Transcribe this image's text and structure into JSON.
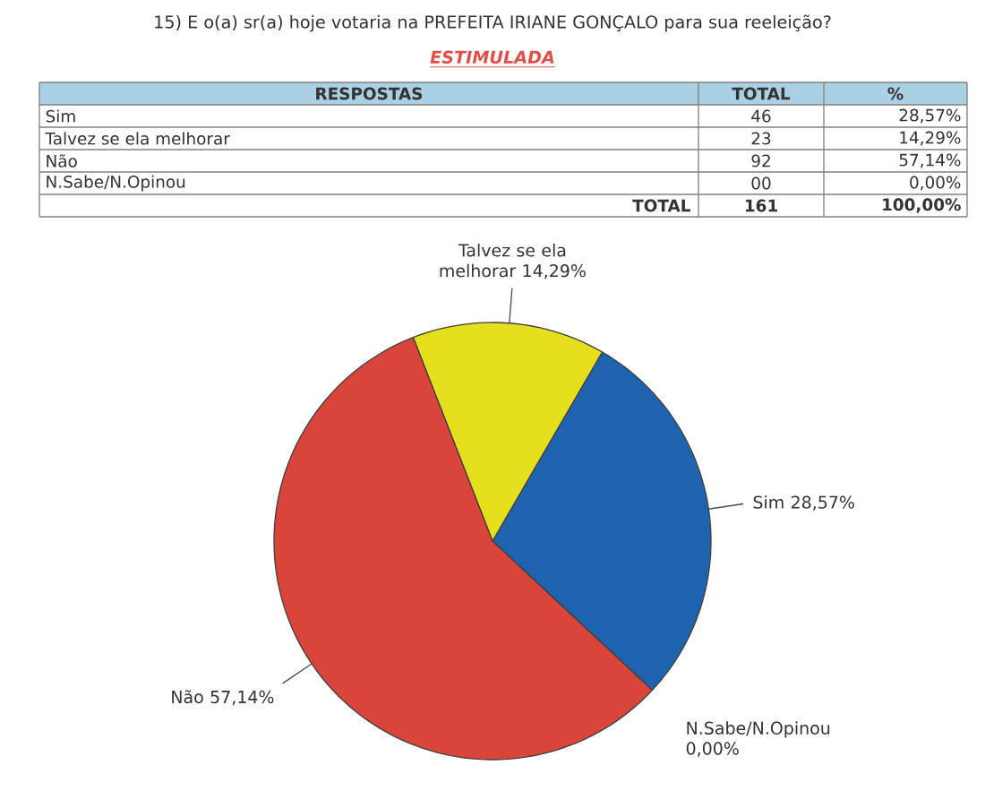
{
  "chart_data": {
    "type": "pie",
    "title": "15) E o(a) sr(a) hoje votaria na PREFEITA IRIANE GONÇALO para sua reeleição?",
    "subtitle": "ESTIMULADA",
    "categories": [
      "Sim",
      "Talvez se ela melhorar",
      "Não",
      "N.Sabe/N.Opinou"
    ],
    "values": [
      28.57,
      14.29,
      57.14,
      0
    ],
    "value_labels": [
      "28,57%",
      "14,29%",
      "57,14%",
      "0,00%"
    ],
    "colors": [
      "#1e63b0",
      "#e6df1e",
      "#d9453b",
      null
    ],
    "annotations": [
      "RESPOSTAS",
      "TOTAL",
      "%",
      "46",
      "23",
      "92",
      "00",
      "TOTAL",
      "161",
      "100,00%"
    ]
  }
}
